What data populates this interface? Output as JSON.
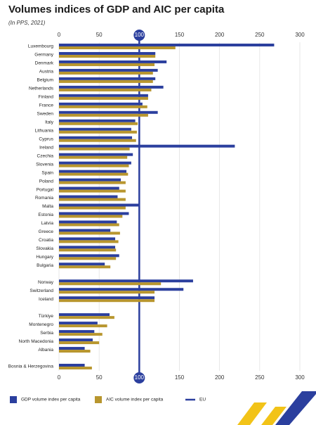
{
  "chart_data": {
    "type": "bar",
    "orientation": "horizontal",
    "title": "Volumes indices of GDP and AIC per capita",
    "subtitle": "(In PPS, 2021)",
    "categories": [
      "Luxembourg",
      "Germany",
      "Denmark",
      "Austria",
      "Belgium",
      "Netherlands",
      "Finland",
      "France",
      "Sweden",
      "Italy",
      "Lithuania",
      "Cyprus",
      "Ireland",
      "Czechia",
      "Slovenia",
      "Spain",
      "Poland",
      "Portugal",
      "Romania",
      "Malta",
      "Estonia",
      "Latvia",
      "Greece",
      "Croatia",
      "Slovakia",
      "Hungary",
      "Bulgaria",
      null,
      "Norway",
      "Switzerland",
      "Iceland",
      null,
      "Türkiye",
      "Montenegro",
      "Serbia",
      "North Macedonia",
      "Albania",
      null,
      "Bosnia & Herzegovina"
    ],
    "series": [
      {
        "name": "GDP volume index per capita",
        "color": "#2b3f9e",
        "values": [
          268,
          120,
          134,
          123,
          120,
          130,
          111,
          104,
          123,
          95,
          90,
          91,
          219,
          92,
          90,
          84,
          77,
          75,
          73,
          100,
          87,
          72,
          64,
          70,
          70,
          75,
          57,
          null,
          167,
          155,
          119,
          null,
          63,
          48,
          44,
          42,
          32,
          null,
          32
        ]
      },
      {
        "name": "AIC volume index per capita",
        "color": "#b8962e",
        "values": [
          145,
          120,
          119,
          117,
          117,
          115,
          111,
          110,
          111,
          98,
          97,
          96,
          88,
          85,
          87,
          86,
          83,
          83,
          83,
          83,
          79,
          75,
          76,
          74,
          71,
          71,
          64,
          null,
          127,
          119,
          119,
          null,
          69,
          60,
          54,
          50,
          39,
          null,
          41
        ]
      }
    ],
    "reference_line": {
      "name": "EU",
      "value": 100,
      "color": "#2b3f9e"
    },
    "xlim": [
      0,
      300
    ],
    "xticks": [
      0,
      50,
      100,
      150,
      200,
      250,
      300
    ],
    "grid": true
  }
}
